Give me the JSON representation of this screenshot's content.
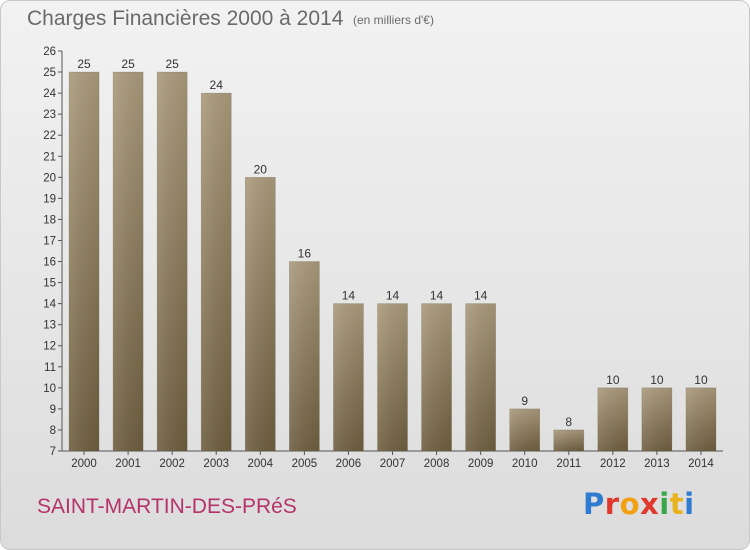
{
  "header": {
    "title": "Charges Financières 2000 à 2014",
    "unit": "(en milliers d'€)"
  },
  "footer": {
    "town": "SAINT-MARTIN-DES-PRéS",
    "logo_letters": [
      "P",
      "r",
      "o",
      "x",
      "i",
      "t",
      "i"
    ]
  },
  "colors": {
    "bar_top": "#aa9a7c",
    "bar_bottom": "#6e5e40",
    "town": "#b5336a"
  },
  "chart_data": {
    "type": "bar",
    "title": "Charges Financières 2000 à 2014",
    "subtitle": "(en milliers d'€)",
    "categories": [
      "2000",
      "2001",
      "2002",
      "2003",
      "2004",
      "2005",
      "2006",
      "2007",
      "2008",
      "2009",
      "2010",
      "2011",
      "2012",
      "2013",
      "2014"
    ],
    "values": [
      25,
      25,
      25,
      24,
      20,
      16,
      14,
      14,
      14,
      14,
      9,
      8,
      10,
      10,
      10
    ],
    "ylim": [
      7,
      26
    ],
    "yticks": [
      7,
      8,
      9,
      10,
      11,
      12,
      13,
      14,
      15,
      16,
      17,
      18,
      19,
      20,
      21,
      22,
      23,
      24,
      25,
      26
    ],
    "grid": false,
    "legend": "none"
  }
}
